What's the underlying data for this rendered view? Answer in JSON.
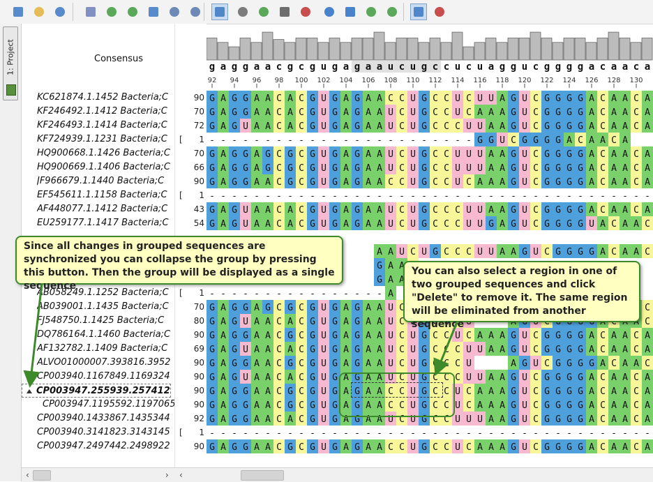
{
  "toolbar": {
    "buttons": [
      {
        "name": "new-document-icon",
        "color": "#3b78c4",
        "active": false
      },
      {
        "name": "open-folder-icon",
        "color": "#e3b23c",
        "active": false
      },
      {
        "name": "save-icon",
        "color": "#3b78c4",
        "active": false
      },
      {
        "name": "export-icon",
        "color": "#6b7fb8",
        "active": false
      },
      {
        "name": "import-icon",
        "color": "#3f9a3f",
        "active": false
      },
      {
        "name": "zoom-in-icon",
        "color": "#3f9a3f",
        "active": false
      },
      {
        "name": "zoom-out-icon",
        "color": "#3b78c4",
        "active": false
      },
      {
        "name": "zoom-fit-icon",
        "color": "#5577aa",
        "active": false
      },
      {
        "name": "zoom-icon",
        "color": "#5577aa",
        "active": false
      },
      {
        "name": "show-overview-icon",
        "color": "#3b78c4",
        "active": true
      },
      {
        "name": "text-tool-icon",
        "color": "#666666",
        "active": false
      },
      {
        "name": "tree-icon",
        "color": "#3f9a3f",
        "active": false
      },
      {
        "name": "image-icon",
        "color": "#555555",
        "active": false
      },
      {
        "name": "selection-icon",
        "color": "#c03030",
        "active": false
      },
      {
        "name": "undo-icon",
        "color": "#2a6fc4",
        "active": false
      },
      {
        "name": "redo-icon",
        "color": "#2a6fc4",
        "active": false
      },
      {
        "name": "arrow-right-icon",
        "color": "#3f9a3f",
        "active": false
      },
      {
        "name": "sort-icon",
        "color": "#3f9a3f",
        "active": false
      },
      {
        "name": "collapse-icon",
        "color": "#3b78c4",
        "active": true
      },
      {
        "name": "remove-gaps-icon",
        "color": "#c03030",
        "active": false
      }
    ]
  },
  "side_tab": {
    "label": "1: Project",
    "icon": "project-icon"
  },
  "names": {
    "consensus_label": "Consensus",
    "rows": [
      {
        "text": "KC621874.1.1452 Bacteria;C",
        "bold": false,
        "indent": false,
        "expander": false,
        "selected": false
      },
      {
        "text": "KF246492.1.1412 Bacteria;C",
        "bold": false,
        "indent": false,
        "expander": false,
        "selected": false
      },
      {
        "text": "KF246493.1.1414 Bacteria;C",
        "bold": false,
        "indent": false,
        "expander": false,
        "selected": false
      },
      {
        "text": "KF724939.1.1231 Bacteria;C",
        "bold": false,
        "indent": false,
        "expander": false,
        "selected": false
      },
      {
        "text": "HQ900668.1.1426 Bacteria;C",
        "bold": false,
        "indent": false,
        "expander": false,
        "selected": false
      },
      {
        "text": "HQ900669.1.1406 Bacteria;C",
        "bold": false,
        "indent": false,
        "expander": false,
        "selected": false
      },
      {
        "text": "JF966679.1.1440 Bacteria;C",
        "bold": false,
        "indent": false,
        "expander": false,
        "selected": false
      },
      {
        "text": "EF545611.1.1158 Bacteria;C",
        "bold": false,
        "indent": false,
        "expander": false,
        "selected": false
      },
      {
        "text": "AF448077.1.1412 Bacteria;C",
        "bold": false,
        "indent": false,
        "expander": false,
        "selected": false
      },
      {
        "text": "EU259177.1.1417 Bacteria;C",
        "bold": false,
        "indent": false,
        "expander": false,
        "selected": false
      },
      {
        "text": "",
        "bold": false,
        "indent": false,
        "expander": false,
        "selected": false
      },
      {
        "text": "",
        "bold": false,
        "indent": false,
        "expander": false,
        "selected": false
      },
      {
        "text": "",
        "bold": false,
        "indent": false,
        "expander": false,
        "selected": false
      },
      {
        "text": "",
        "bold": false,
        "indent": false,
        "expander": false,
        "selected": false
      },
      {
        "text": "AB058249.1.1252 Bacteria;C",
        "bold": false,
        "indent": false,
        "expander": false,
        "selected": false
      },
      {
        "text": "AB039001.1.1435 Bacteria;C",
        "bold": false,
        "indent": false,
        "expander": false,
        "selected": false
      },
      {
        "text": "FJ548750.1.1425 Bacteria;C",
        "bold": false,
        "indent": false,
        "expander": false,
        "selected": false
      },
      {
        "text": "DQ786164.1.1460 Bacteria;C",
        "bold": false,
        "indent": false,
        "expander": false,
        "selected": false
      },
      {
        "text": "AF132782.1.1409 Bacteria;C",
        "bold": false,
        "indent": false,
        "expander": false,
        "selected": false
      },
      {
        "text": "ALVO01000007.393816.3952",
        "bold": false,
        "indent": false,
        "expander": false,
        "selected": false
      },
      {
        "text": "CP003940.1167849.1169324",
        "bold": false,
        "indent": false,
        "expander": false,
        "selected": false
      },
      {
        "text": "CP003947.255939.257412",
        "bold": true,
        "indent": false,
        "expander": true,
        "selected": true
      },
      {
        "text": "CP003947.1195592.1197065",
        "bold": false,
        "indent": true,
        "expander": false,
        "selected": false
      },
      {
        "text": "CP003940.1433867.1435344",
        "bold": false,
        "indent": false,
        "expander": false,
        "selected": false
      },
      {
        "text": "CP003940.3141823.3143145",
        "bold": false,
        "indent": false,
        "expander": false,
        "selected": false
      },
      {
        "text": "CP003947.2497442.2498922",
        "bold": false,
        "indent": false,
        "expander": false,
        "selected": false
      }
    ]
  },
  "offsets": [
    {
      "num": "90",
      "bracket": ""
    },
    {
      "num": "70",
      "bracket": ""
    },
    {
      "num": "72",
      "bracket": ""
    },
    {
      "num": "1",
      "bracket": "["
    },
    {
      "num": "70",
      "bracket": ""
    },
    {
      "num": "66",
      "bracket": ""
    },
    {
      "num": "90",
      "bracket": ""
    },
    {
      "num": "1",
      "bracket": "["
    },
    {
      "num": "43",
      "bracket": ""
    },
    {
      "num": "54",
      "bracket": ""
    },
    {
      "num": "",
      "bracket": ""
    },
    {
      "num": "",
      "bracket": ""
    },
    {
      "num": "",
      "bracket": ""
    },
    {
      "num": "",
      "bracket": ""
    },
    {
      "num": "1",
      "bracket": "["
    },
    {
      "num": "70",
      "bracket": ""
    },
    {
      "num": "80",
      "bracket": ""
    },
    {
      "num": "90",
      "bracket": ""
    },
    {
      "num": "69",
      "bracket": ""
    },
    {
      "num": "90",
      "bracket": ""
    },
    {
      "num": "90",
      "bracket": ""
    },
    {
      "num": "90",
      "bracket": ""
    },
    {
      "num": "90",
      "bracket": ""
    },
    {
      "num": "92",
      "bracket": ""
    },
    {
      "num": "1",
      "bracket": "["
    },
    {
      "num": "90",
      "bracket": ""
    }
  ],
  "alignment": {
    "consensus": "gaggaacgcgugagaaucugccucuaggucggggacaaca",
    "ruler_labels": [
      "92",
      "94",
      "96",
      "98",
      "100",
      "102",
      "104",
      "106",
      "108",
      "110",
      "112",
      "114",
      "116",
      "118",
      "120",
      "122",
      "124",
      "126",
      "128",
      "130"
    ],
    "histogram": [
      0.75,
      0.6,
      0.45,
      0.75,
      0.6,
      0.95,
      0.7,
      0.6,
      0.75,
      0.75,
      0.6,
      0.75,
      0.6,
      0.75,
      0.75,
      0.95,
      0.6,
      0.75,
      0.75,
      0.6,
      0.75,
      0.6,
      0.95,
      0.45,
      0.6,
      0.75,
      0.6,
      0.75,
      0.75,
      0.95,
      0.75,
      0.6,
      0.75,
      0.75,
      0.6,
      0.75,
      0.95,
      0.75,
      0.6,
      0.75
    ],
    "rows": [
      "GAGGAACACGUGAGAACCUGCCUCUUAGUCGGGGACAACA",
      "GAGGAACACGUGAGAAUCUGCCUCAAAGUCGGGGACAACA",
      "GAGUAACACGUGAGAAUCUGCCCUUAAGUCGGGGACAACA",
      "------------------------GGUCGGGGACAACA",
      "GAGGAGCGCGUGAGAAUCUGCCUUUAAGUCGGGGACAACA",
      "GAGGAGCGCGUGAGAAUCUGCCUUUAAGUCGGGGACAACA",
      "GAGGAACGCGUGAGAACCUGCCUCAAAGUCGGGGACAACA",
      "----------------------------------------",
      "GAGUAACACGUGAGAAUCUGCCCUUAAGUCGGGGACAACA",
      "GAGUAACACGUGAGAAUCUGCCCUUGAGUCGGGGUACAACA",
      "..........",
      "...............AAUCUGCCCUUAAGUCGGGGACAACA",
      "...............GAAC.....................",
      "...............GAAC.....................",
      "----------------A...........A.............",
      "GAGGAGCGCGUGAGAAUCUGCCCU...AGUCGGGGACAACA",
      "GAGUAACACGUGAGAAUCUGCCCU...AGUCGGGGACAACA",
      "GAGGAACGCGUGAGAAUCUGCCUCAAAGUCGGGGACAACA",
      "GAGUAACACGUGAGAAUCUGCCCUUAAGUCGGGGACAACA",
      "GAGGAACGCGUGAGAAUCUGCCCU...AGUCGGGGACAACA",
      "GAGUAACACGUGAGAAUCUGCCCUUAAGUCGGGGACAACA",
      "GAGGAACGCGUGAGAACCUGCCUCAAAGUCGGGGACAACA",
      "GAGGAACGCGUGAGAACCUGCCUCAAAGUCGGGGACAACA",
      "GAGGAACACGUGAGAAUCUGCCUUUAAGUCGGGGACAACA",
      "----------------------------------------",
      "GAGGAACGCGUGAGAACCUGCCUCAAAGUCGGGGACAACA"
    ],
    "colors": {
      "A": "#7ad06b",
      "C": "#f7f79a",
      "G": "#4da0dc",
      "U": "#f7b9cf",
      "T": "#f7b9cf"
    }
  },
  "callouts": {
    "collapse": "Since all changes in grouped sequences are synchronized you can collapse the group by pressing this button. Then the group will be displayed as a single sequence",
    "delete": "You can also select a region in one of two grouped sequences and click \"Delete\" to remove it. The same region will be eliminated from another sequence"
  },
  "bottom": {
    "left_arrow": "‹",
    "right_arrow": "›",
    "left_arrow2": "‹"
  }
}
